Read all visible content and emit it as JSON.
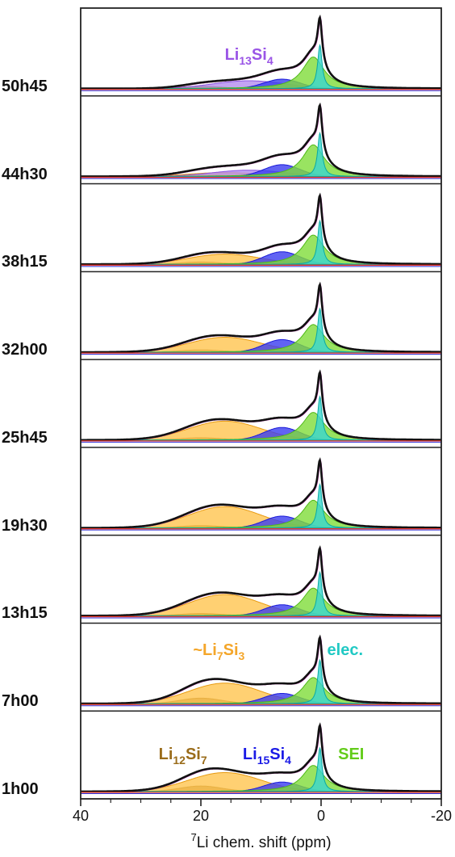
{
  "chart_data": {
    "type": "area",
    "xlabel_sup": "7",
    "xlabel_rest": "Li chem. shift (ppm)",
    "xlim": [
      40,
      -20
    ],
    "xticks": [
      40,
      20,
      0,
      -20
    ],
    "xticks_minor": [
      35,
      30,
      25,
      15,
      10,
      5,
      -5,
      -10,
      -15
    ],
    "panels": [
      {
        "time": "50h45",
        "components": {
          "Li13Si4": 0.1,
          "Li12Si7": 0.03,
          "~Li7Si3": 0.0,
          "Li15Si4": 0.12,
          "SEI": 0.4,
          "elec.": 0.55
        }
      },
      {
        "time": "44h30",
        "components": {
          "Li13Si4": 0.08,
          "Li12Si7": 0.02,
          "~Li7Si3": 0.05,
          "Li15Si4": 0.15,
          "SEI": 0.4,
          "elec.": 0.55
        }
      },
      {
        "time": "38h15",
        "components": {
          "Li13Si4": 0.0,
          "Li12Si7": 0.03,
          "~Li7Si3": 0.13,
          "Li15Si4": 0.16,
          "SEI": 0.37,
          "elec.": 0.55
        }
      },
      {
        "time": "32h00",
        "components": {
          "Li13Si4": 0.0,
          "Li12Si7": 0.03,
          "~Li7Si3": 0.19,
          "Li15Si4": 0.16,
          "SEI": 0.35,
          "elec.": 0.55
        }
      },
      {
        "time": "25h45",
        "components": {
          "Li13Si4": 0.0,
          "Li12Si7": 0.03,
          "~Li7Si3": 0.24,
          "Li15Si4": 0.16,
          "SEI": 0.35,
          "elec.": 0.55
        }
      },
      {
        "time": "19h30",
        "components": {
          "Li13Si4": 0.0,
          "Li12Si7": 0.03,
          "~Li7Si3": 0.27,
          "Li15Si4": 0.15,
          "SEI": 0.35,
          "elec.": 0.55
        }
      },
      {
        "time": "13h15",
        "components": {
          "Li13Si4": 0.0,
          "Li12Si7": 0.03,
          "~Li7Si3": 0.27,
          "Li15Si4": 0.14,
          "SEI": 0.35,
          "elec.": 0.55
        }
      },
      {
        "time": "7h00",
        "components": {
          "Li13Si4": 0.0,
          "Li12Si7": 0.07,
          "~Li7Si3": 0.26,
          "Li15Si4": 0.13,
          "SEI": 0.33,
          "elec.": 0.55
        }
      },
      {
        "time": "1h00",
        "components": {
          "Li13Si4": 0.0,
          "Li12Si7": 0.07,
          "~Li7Si3": 0.24,
          "Li15Si4": 0.12,
          "SEI": 0.33,
          "elec.": 0.55
        }
      }
    ],
    "component_defs": [
      {
        "key": "Li12Si7",
        "center": 20,
        "width": 3.5,
        "fill": "#a0782a",
        "line": "#8a5e10"
      },
      {
        "key": "~Li7Si3",
        "center": 16,
        "width": 6.0,
        "fill": "#ffc44f",
        "line": "#e89a10"
      },
      {
        "key": "Li13Si4",
        "center": 12,
        "width": 6.0,
        "fill": "#b48cf0",
        "line": "#8a52e0"
      },
      {
        "key": "Li15Si4",
        "center": 6.5,
        "width": 3.0,
        "fill": "#3a3cf0",
        "line": "#1a1ad8"
      },
      {
        "key": "SEI",
        "center": 1.3,
        "width": 2.2,
        "fill": "#7fdc3a",
        "line": "#4fb818"
      },
      {
        "key": "elec.",
        "center": 0.2,
        "width": 0.45,
        "fill": "#39d6d0",
        "line": "#0aa8a4"
      }
    ],
    "annotations": [
      {
        "panel": 0,
        "base": "Li",
        "sub1": "13",
        "mid": "Si",
        "sub2": "4",
        "x": 12,
        "color": "#9a55e6"
      },
      {
        "panel": 7,
        "base": "~Li",
        "sub1": "7",
        "mid": "Si",
        "sub2": "3",
        "x": 17,
        "color": "#f4a62a"
      },
      {
        "panel": 7,
        "base": "elec.",
        "sub1": "",
        "mid": "",
        "sub2": "",
        "x": -4,
        "color": "#21c9c4"
      },
      {
        "panel": 8,
        "base": "Li",
        "sub1": "12",
        "mid": "Si",
        "sub2": "7",
        "x": 23,
        "color": "#9a6c1a"
      },
      {
        "panel": 8,
        "base": "Li",
        "sub1": "15",
        "mid": "Si",
        "sub2": "4",
        "x": 9,
        "color": "#1a1ae6"
      },
      {
        "panel": 8,
        "base": "SEI",
        "sub1": "",
        "mid": "",
        "sub2": "",
        "x": -5,
        "color": "#63cc1a"
      }
    ]
  }
}
